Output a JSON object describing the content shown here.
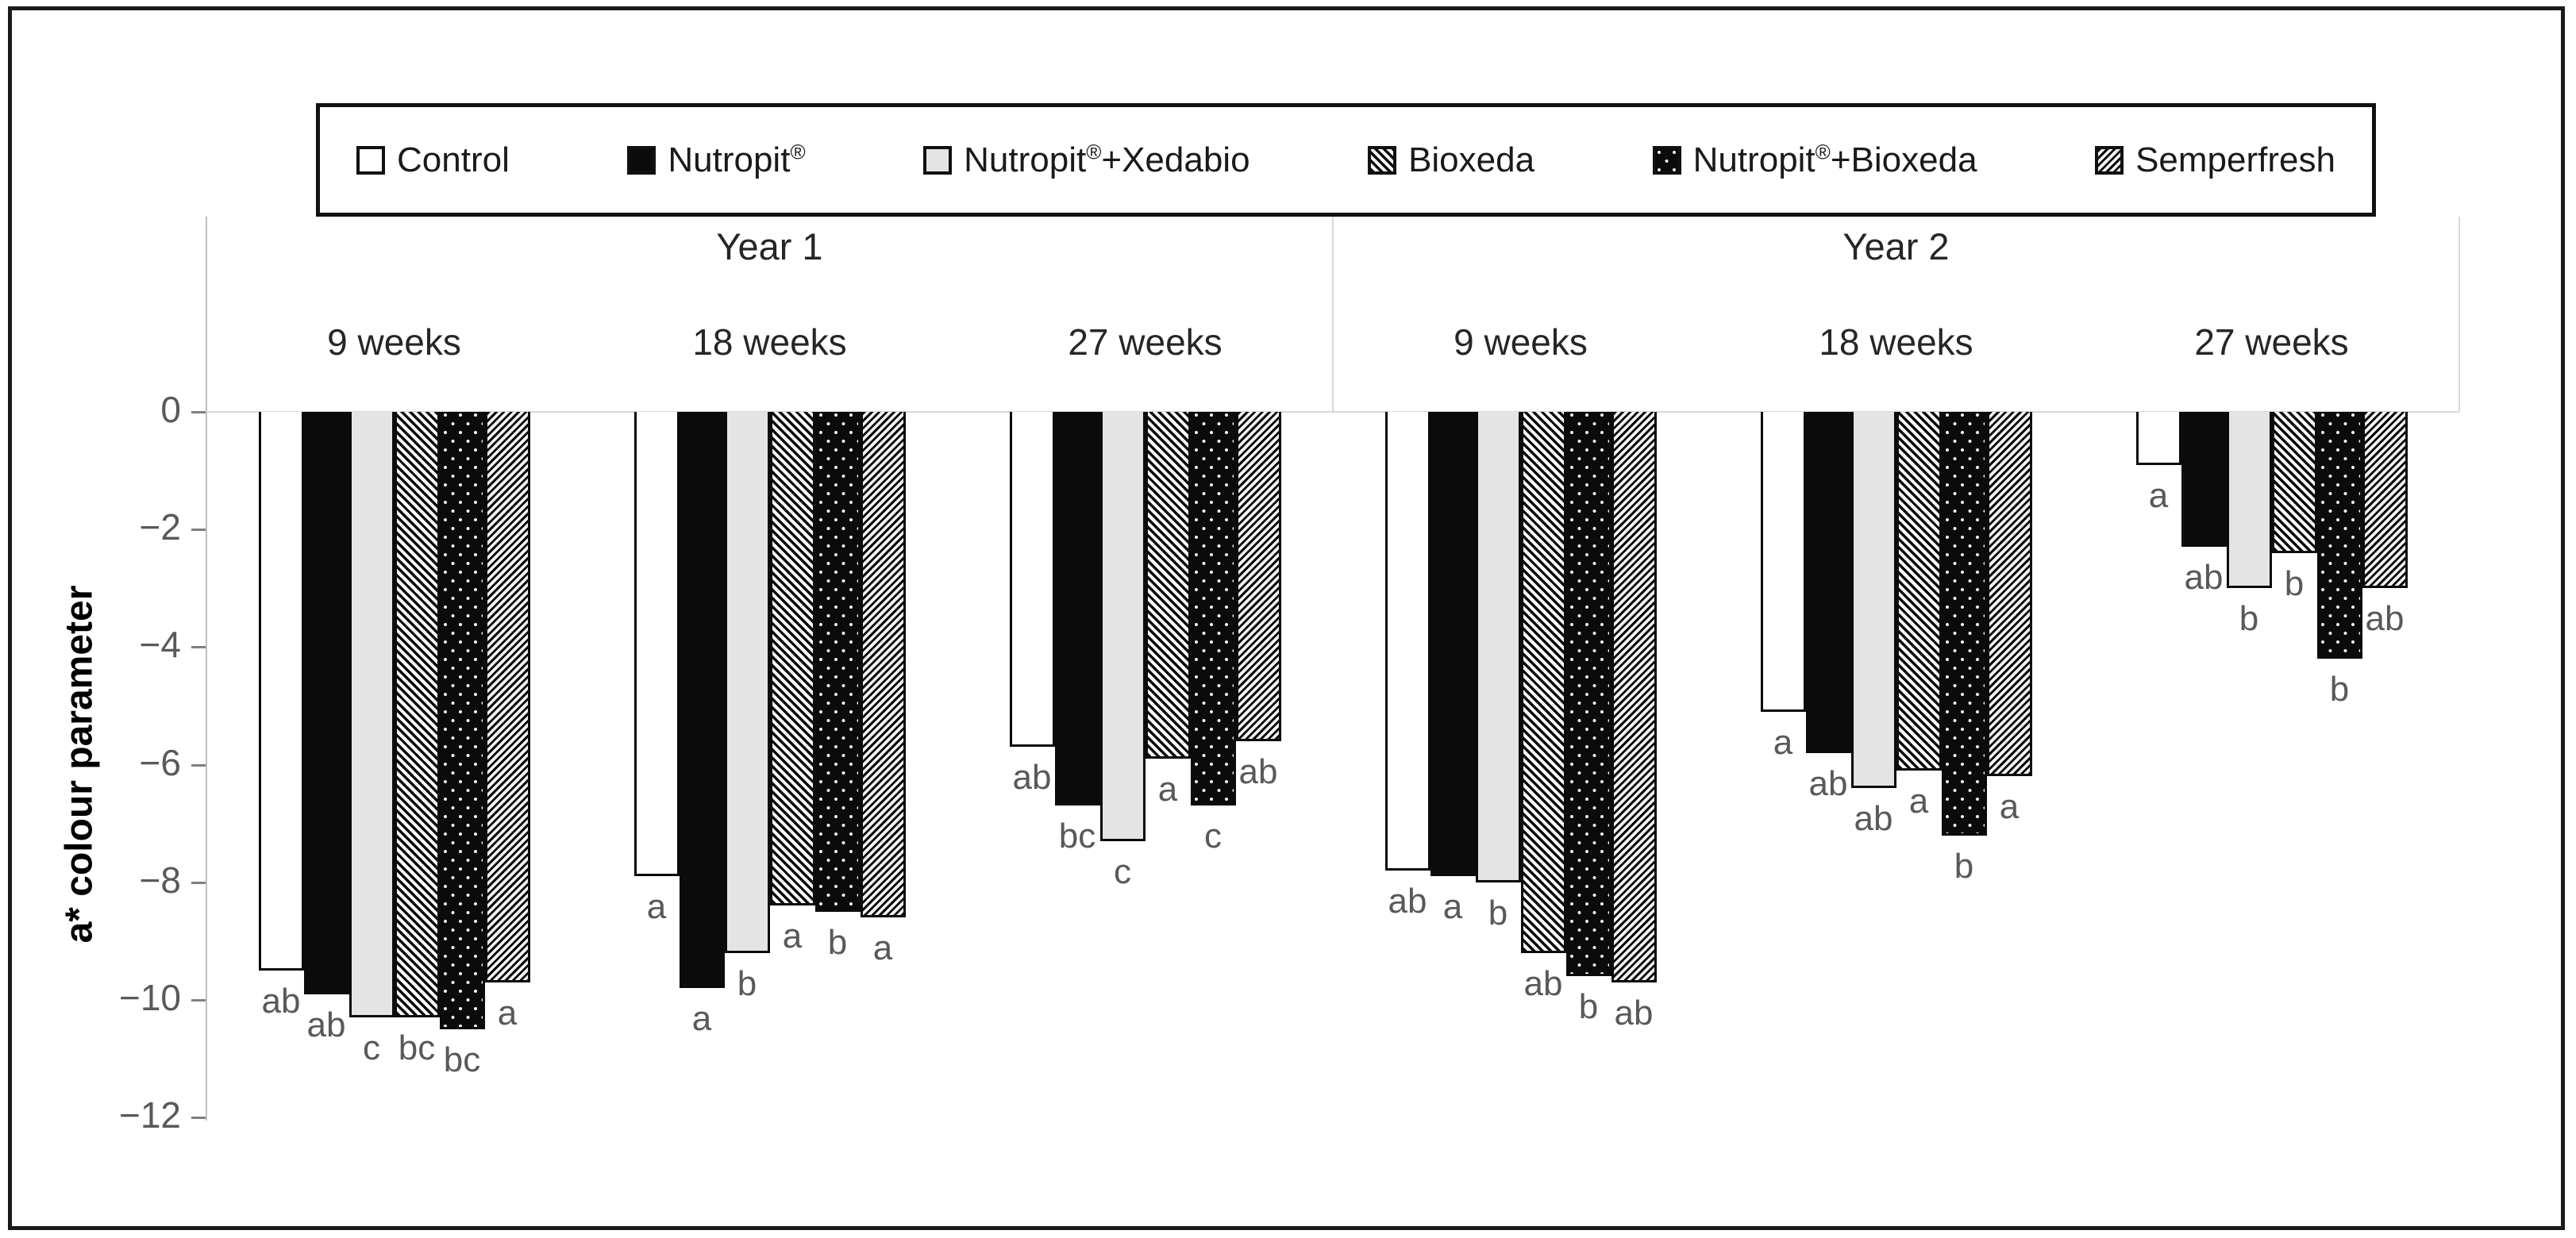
{
  "legend": {
    "items": [
      {
        "pre": "Control",
        "sup": "",
        "post": "",
        "pattern": "white-open"
      },
      {
        "pre": "Nutropit",
        "sup": "®",
        "post": "",
        "pattern": "solid-black"
      },
      {
        "pre": "Nutropit",
        "sup": "®",
        "post": "+Xedabio",
        "pattern": "light-gray"
      },
      {
        "pre": "Bioxeda",
        "sup": "",
        "post": "",
        "pattern": "diagonal-down-hatch"
      },
      {
        "pre": "Nutropit",
        "sup": "®",
        "post": "+Bioxeda",
        "pattern": "white-dots-on-black"
      },
      {
        "pre": "Semperfresh",
        "sup": "",
        "post": "",
        "pattern": "diagonal-up-fine-hatch"
      }
    ]
  },
  "chart_data": {
    "type": "bar",
    "title": "",
    "ylabel": "a* colour parameter",
    "xlabel": "",
    "ylim": [
      -12,
      0
    ],
    "yticks": [
      0,
      -2,
      -4,
      -6,
      -8,
      -10,
      -12
    ],
    "ytick_labels": [
      "0",
      "−2",
      "−4",
      "−6",
      "−8",
      "−10",
      "−12"
    ],
    "grid": false,
    "legend_position": "top",
    "series": [
      "Control",
      "Nutropit®",
      "Nutropit®+Xedabio",
      "Bioxeda",
      "Nutropit®+Bioxeda",
      "Semperfresh"
    ],
    "year_sections": [
      {
        "label": "Year 1",
        "weeks": [
          "9 weeks",
          "18 weeks",
          "27 weeks"
        ]
      },
      {
        "label": "Year 2",
        "weeks": [
          "9 weeks",
          "18 weeks",
          "27 weeks"
        ]
      }
    ],
    "groups": [
      {
        "year": "Year 1",
        "week": "9 weeks",
        "values": [
          -9.5,
          -9.9,
          -10.3,
          -10.3,
          -10.5,
          -9.7
        ],
        "letters": [
          "ab",
          "ab",
          "c",
          "bc",
          "bc",
          "a"
        ]
      },
      {
        "year": "Year 1",
        "week": "18 weeks",
        "values": [
          -7.9,
          -9.8,
          -9.2,
          -8.4,
          -8.5,
          -8.6
        ],
        "letters": [
          "a",
          "a",
          "b",
          "a",
          "b",
          "a"
        ]
      },
      {
        "year": "Year 1",
        "week": "27 weeks",
        "values": [
          -5.7,
          -6.7,
          -7.3,
          -5.9,
          -6.7,
          -5.6
        ],
        "letters": [
          "ab",
          "bc",
          "c",
          "a",
          "c",
          "ab"
        ]
      },
      {
        "year": "Year 2",
        "week": "9 weeks",
        "values": [
          -7.8,
          -7.9,
          -8.0,
          -9.2,
          -9.6,
          -9.7
        ],
        "letters": [
          "ab",
          "a",
          "b",
          "ab",
          "b",
          "ab"
        ]
      },
      {
        "year": "Year 2",
        "week": "18 weeks",
        "values": [
          -5.1,
          -5.8,
          -6.4,
          -6.1,
          -7.2,
          -6.2
        ],
        "letters": [
          "a",
          "ab",
          "ab",
          "a",
          "b",
          "a"
        ]
      },
      {
        "year": "Year 2",
        "week": "27 weeks",
        "values": [
          -0.9,
          -2.3,
          -3.0,
          -2.4,
          -4.2,
          -3.0
        ],
        "letters": [
          "a",
          "ab",
          "b",
          "b",
          "b",
          "ab"
        ]
      }
    ],
    "colors": {
      "bar_border": "#0b0b0b",
      "gridline": "#d9d9d9",
      "axis_line": "#bfbfbf",
      "tick_text": "#595959",
      "letter_text": "#595959",
      "label_text": "#262626",
      "light_gray_fill": "#e4e4e4"
    }
  }
}
